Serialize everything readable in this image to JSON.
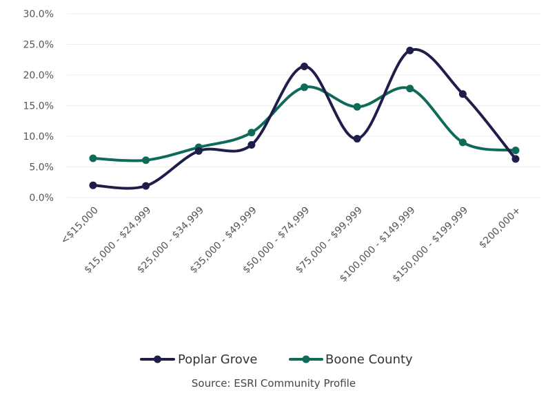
{
  "chart_data": {
    "type": "line",
    "smooth": true,
    "categories": [
      "<$15,000",
      "$15,000 - $24,999",
      "$25,000 - $34,999",
      "$35,000 - $49,999",
      "$50,000 - $74,999",
      "$75,000 - $99,999",
      "$100,000 - $149,999",
      "$150,000 - $199,999",
      "$200,000+"
    ],
    "y_ticks": [
      "0.0%",
      "5.0%",
      "10.0%",
      "15.0%",
      "20.0%",
      "25.0%",
      "30.0%"
    ],
    "ylim": [
      0,
      30
    ],
    "grid": true,
    "legend_position": "bottom",
    "series": [
      {
        "name": "Poplar Grove",
        "color": "#1f1d4a",
        "values": [
          2.0,
          1.9,
          7.6,
          8.6,
          21.4,
          9.6,
          24.0,
          16.9,
          6.3
        ]
      },
      {
        "name": "Boone County",
        "color": "#0e6b5a",
        "values": [
          6.4,
          6.1,
          8.2,
          10.6,
          18.0,
          14.8,
          17.8,
          9.0,
          7.7
        ]
      }
    ],
    "source": "Source: ESRI Community Profile"
  }
}
